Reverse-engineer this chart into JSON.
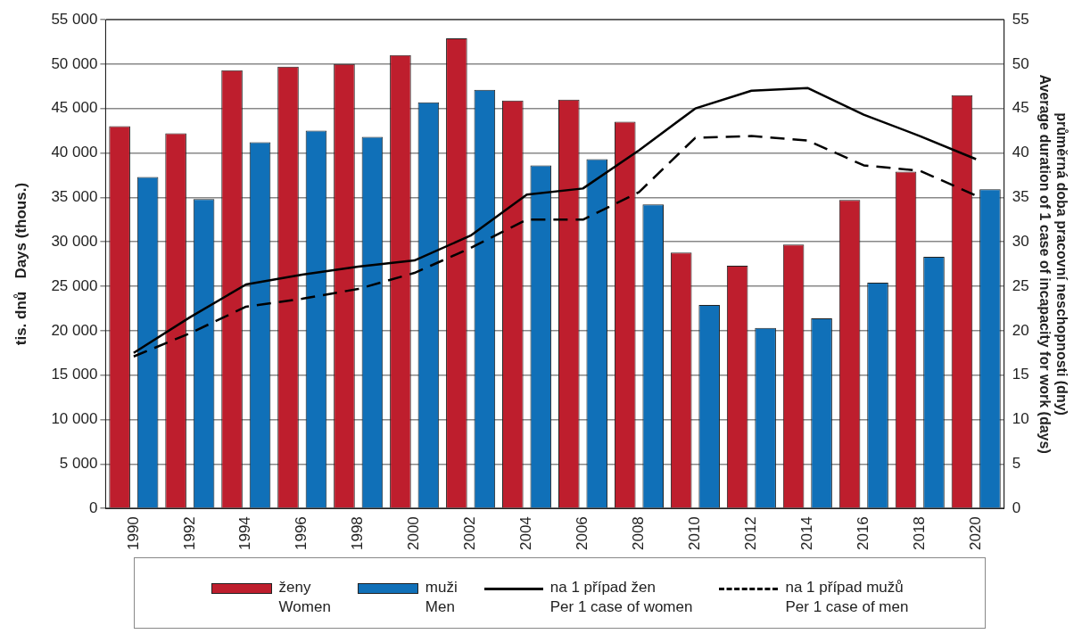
{
  "chart_data": {
    "type": "bar",
    "ylabel": "tis. dnů   Days (thous.)",
    "y2label": "průměrná doba pracovní neschopnosti (dny)\nAverage duration of 1 case of incapacity for work (days)",
    "categories": [
      "1990",
      "1992",
      "1994",
      "1996",
      "1998",
      "2000",
      "2002",
      "2004",
      "2006",
      "2008",
      "2010",
      "2012",
      "2014",
      "2016",
      "2018",
      "2020"
    ],
    "series": [
      {
        "name": "ženy\nWomen",
        "color": "#be1e2d",
        "values": [
          43000,
          42200,
          49300,
          49700,
          50000,
          51000,
          52900,
          45900,
          46000,
          43500,
          28800,
          27300,
          29700,
          34700,
          37900,
          46500
        ]
      },
      {
        "name": "muži\nMen",
        "color": "#1070b8",
        "values": [
          37300,
          34800,
          41200,
          42500,
          41800,
          45700,
          47100,
          38600,
          39300,
          34200,
          22900,
          20300,
          21400,
          25400,
          28300,
          35900
        ]
      },
      {
        "name": "na 1 případ žen\nPer 1 case of women",
        "type": "line",
        "axis": "y2",
        "color": "#000000",
        "line_style": "solid",
        "values": [
          17.5,
          21.5,
          25.2,
          26.3,
          27.2,
          27.9,
          30.7,
          35.3,
          36.0,
          40.3,
          45.0,
          47.0,
          47.3,
          44.3,
          41.9,
          39.3
        ]
      },
      {
        "name": "na 1 případ mužů\nPer 1 case of men",
        "type": "line",
        "axis": "y2",
        "color": "#000000",
        "line_style": "dashed",
        "values": [
          17.1,
          19.7,
          22.7,
          23.6,
          24.7,
          26.5,
          29.3,
          32.5,
          32.5,
          35.6,
          41.7,
          41.9,
          41.4,
          38.6,
          38.0,
          35.2
        ]
      }
    ],
    "ylim": [
      0,
      55000
    ],
    "yticks": [
      {
        "value": 0,
        "label": "0"
      },
      {
        "value": 5000,
        "label": "5 000"
      },
      {
        "value": 10000,
        "label": "10 000"
      },
      {
        "value": 15000,
        "label": "15 000"
      },
      {
        "value": 20000,
        "label": "20 000"
      },
      {
        "value": 25000,
        "label": "25 000"
      },
      {
        "value": 30000,
        "label": "30 000"
      },
      {
        "value": 35000,
        "label": "35 000"
      },
      {
        "value": 40000,
        "label": "40 000"
      },
      {
        "value": 45000,
        "label": "45 000"
      },
      {
        "value": 50000,
        "label": "50 000"
      },
      {
        "value": 55000,
        "label": "55 000"
      }
    ],
    "y2lim": [
      0,
      55
    ],
    "y2ticks": [
      0,
      5,
      10,
      15,
      20,
      25,
      30,
      35,
      40,
      45,
      50,
      55
    ],
    "grid": "y",
    "legend": "bottom",
    "marker": "none"
  }
}
